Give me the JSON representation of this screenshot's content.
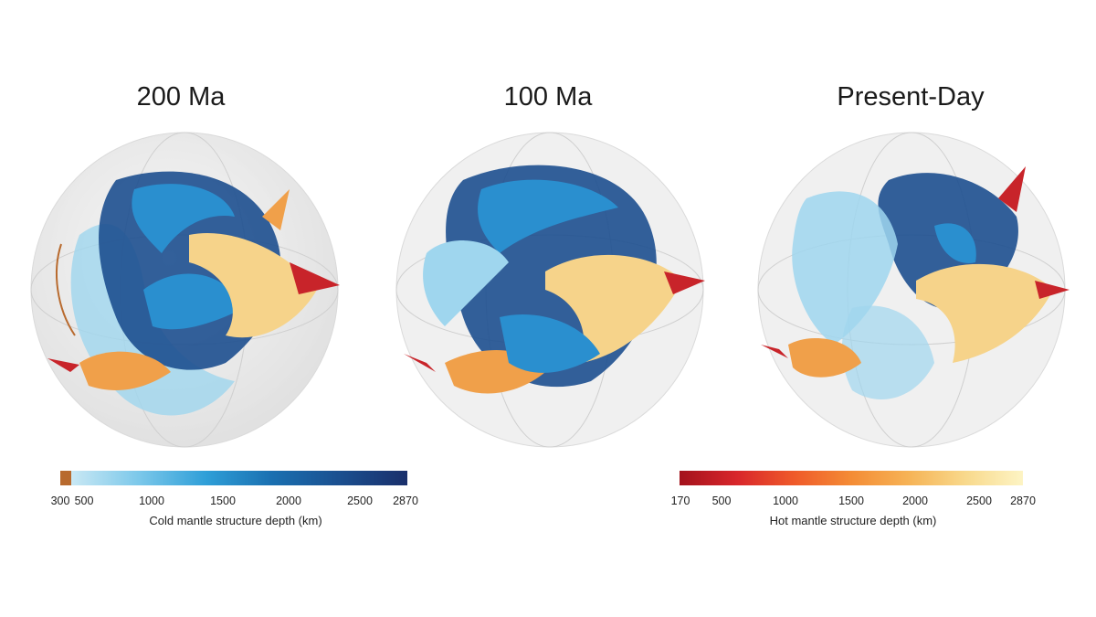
{
  "panels": [
    {
      "title": "200 Ma"
    },
    {
      "title": "100 Ma"
    },
    {
      "title": "Present-Day"
    }
  ],
  "cold_colorbar": {
    "title": "Cold mantle structure depth (km)",
    "ticks": [
      "300",
      "500",
      "1000",
      "1500",
      "2000",
      "2500",
      "2870"
    ],
    "gradient": [
      "#b86a2e",
      "#c9e8f4",
      "#7cc8ea",
      "#2f9fd8",
      "#1a6fb0",
      "#1b4f8f",
      "#1a2f6b"
    ]
  },
  "hot_colorbar": {
    "title": "Hot mantle structure depth (km)",
    "ticks": [
      "170",
      "500",
      "1000",
      "1500",
      "2000",
      "2500",
      "2870"
    ],
    "gradient": [
      "#a3121c",
      "#d8262b",
      "#ef5a2a",
      "#f48c35",
      "#f6b356",
      "#f8d98c",
      "#fdf4c4"
    ]
  },
  "colors": {
    "cold_light": "#9fd6ee",
    "cold_mid": "#2a8fcf",
    "cold_dark": "#1d4f8f",
    "hot_light": "#f6d38a",
    "hot_mid": "#f0a04a",
    "hot_dark": "#c8242a",
    "sphere": "#d8d8d8"
  }
}
